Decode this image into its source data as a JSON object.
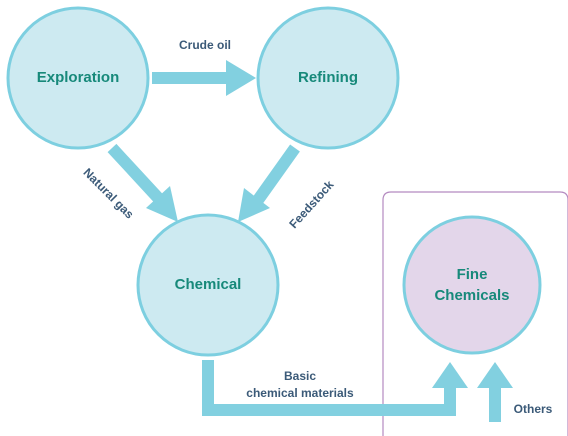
{
  "nodes": [
    {
      "label": [
        "Exploration"
      ]
    },
    {
      "label": [
        "Refining"
      ]
    },
    {
      "label": [
        "Chemical"
      ]
    },
    {
      "label": [
        "Fine",
        "Chemicals"
      ]
    }
  ],
  "edges": [
    {
      "label": [
        "Crude oil"
      ]
    },
    {
      "label": [
        "Natural gas"
      ]
    },
    {
      "label": [
        "Feedstock"
      ]
    },
    {
      "label": [
        "Basic",
        "chemical materials"
      ]
    },
    {
      "label": [
        "Others"
      ]
    }
  ]
}
